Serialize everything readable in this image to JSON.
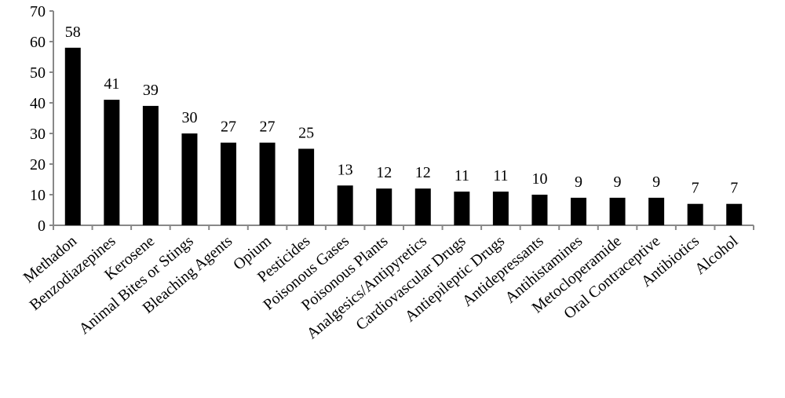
{
  "chart_data": {
    "type": "bar",
    "categories": [
      "Methadon",
      "Benzodiazepines",
      "Kerosene",
      "Animal Bites or Stings",
      "Bleaching Agents",
      "Opium",
      "Pesticides",
      "Poisonous Gases",
      "Poisonous Plants",
      "Analgesics/Antipyretics",
      "Cardiovascular Drugs",
      "Antiepileptic Drugs",
      "Antidepressants",
      "Antihistamines",
      "Metocloperamide",
      "Oral Contraceptive",
      "Antibiotics",
      "Alcohol"
    ],
    "values": [
      58,
      41,
      39,
      30,
      27,
      27,
      25,
      13,
      12,
      12,
      11,
      11,
      10,
      9,
      9,
      9,
      7,
      7
    ],
    "color": "#000000",
    "ylim": [
      0,
      70
    ],
    "yticks": [
      0,
      10,
      20,
      30,
      40,
      50,
      60,
      70
    ],
    "grid": false
  }
}
